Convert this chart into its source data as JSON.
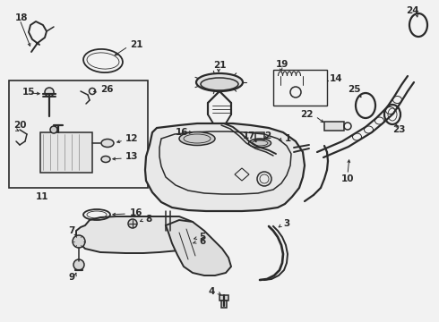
{
  "bg_color": "#f2f2f2",
  "line_color": "#2a2a2a",
  "lw": 1.1,
  "fontsize": 7.5,
  "fig_w": 4.9,
  "fig_h": 3.6,
  "dpi": 100
}
